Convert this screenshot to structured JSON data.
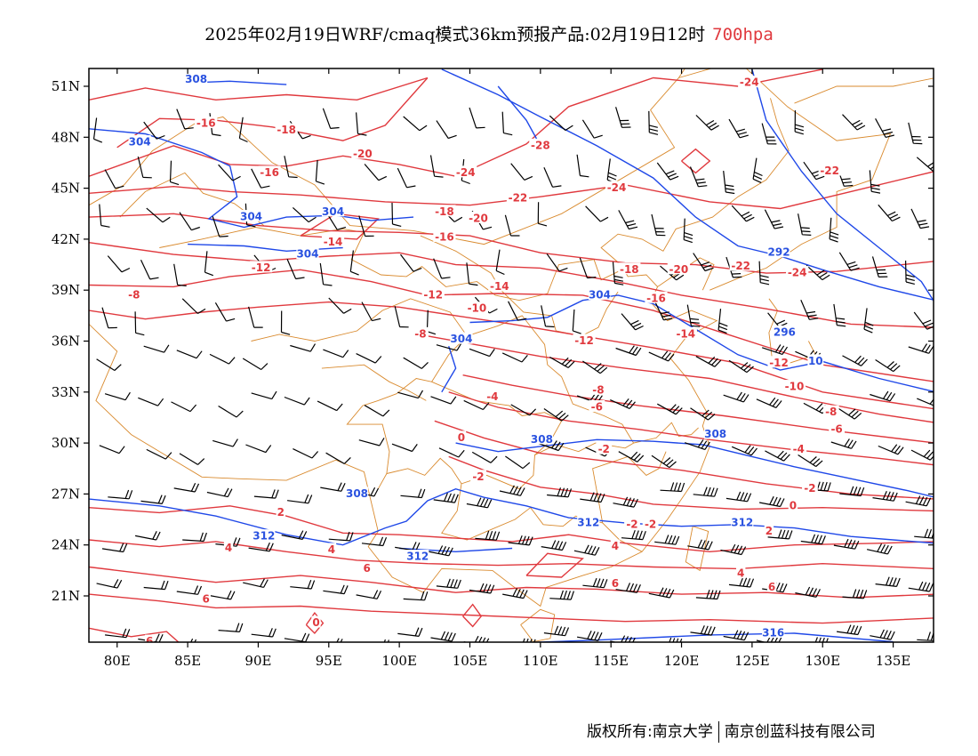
{
  "title": {
    "text": "2025年02月19日WRF/cmaq模式36km预报产品:02月19日12时",
    "level": "700hpa"
  },
  "footer": {
    "owner": "版权所有:南京大学",
    "company": "南京创蓝科技有限公司"
  },
  "colors": {
    "temperature": "#e0393e",
    "geopotential_height": "#1f48e8",
    "boundaries": "#d98a2e",
    "wind_barbs": "#000000"
  },
  "axes": {
    "lon_ticks": [
      "80E",
      "85E",
      "90E",
      "95E",
      "100E",
      "105E",
      "110E",
      "115E",
      "120E",
      "125E",
      "130E",
      "135E"
    ],
    "lat_ticks": [
      "51N",
      "48N",
      "45N",
      "42N",
      "39N",
      "36N",
      "33N",
      "30N",
      "27N",
      "24N",
      "21N"
    ],
    "lon_range": [
      78,
      138
    ],
    "lat_range": [
      17.5,
      52
    ]
  },
  "temperature_labels": [
    {
      "text": "-16",
      "lon": 86.3,
      "lat": 48.8
    },
    {
      "text": "-18",
      "lon": 92,
      "lat": 48.4
    },
    {
      "text": "-16",
      "lon": 90.8,
      "lat": 45.9
    },
    {
      "text": "-20",
      "lon": 97.4,
      "lat": 47
    },
    {
      "text": "-28",
      "lon": 110,
      "lat": 47.5
    },
    {
      "text": "-24",
      "lon": 104.7,
      "lat": 45.9
    },
    {
      "text": "-24",
      "lon": 115.4,
      "lat": 45
    },
    {
      "text": "-24",
      "lon": 124.8,
      "lat": 51.2
    },
    {
      "text": "-22",
      "lon": 130.5,
      "lat": 46
    },
    {
      "text": "-22",
      "lon": 108.4,
      "lat": 44.4
    },
    {
      "text": "-18",
      "lon": 103.2,
      "lat": 43.6
    },
    {
      "text": "-20",
      "lon": 105.6,
      "lat": 43.2
    },
    {
      "text": "-16",
      "lon": 103.2,
      "lat": 42.1
    },
    {
      "text": "-14",
      "lon": 95.3,
      "lat": 41.8
    },
    {
      "text": "-12",
      "lon": 90.2,
      "lat": 40.3
    },
    {
      "text": "-18",
      "lon": 116.3,
      "lat": 40.2
    },
    {
      "text": "-20",
      "lon": 119.8,
      "lat": 40.2
    },
    {
      "text": "-22",
      "lon": 124.2,
      "lat": 40.4
    },
    {
      "text": "-24",
      "lon": 128.2,
      "lat": 40
    },
    {
      "text": "-8",
      "lon": 81.2,
      "lat": 38.7
    },
    {
      "text": "-12",
      "lon": 102.4,
      "lat": 38.7
    },
    {
      "text": "-14",
      "lon": 107.1,
      "lat": 39.2
    },
    {
      "text": "-16",
      "lon": 118.2,
      "lat": 38.5
    },
    {
      "text": "-10",
      "lon": 105.5,
      "lat": 37.9
    },
    {
      "text": "-8",
      "lon": 101.5,
      "lat": 36.4
    },
    {
      "text": "-12",
      "lon": 113.1,
      "lat": 36
    },
    {
      "text": "-14",
      "lon": 120.3,
      "lat": 36.4
    },
    {
      "text": "-12",
      "lon": 126.9,
      "lat": 34.7
    },
    {
      "text": "-10",
      "lon": 128,
      "lat": 33.3
    },
    {
      "text": "-8",
      "lon": 114.1,
      "lat": 33.1
    },
    {
      "text": "-4",
      "lon": 106.6,
      "lat": 32.7
    },
    {
      "text": "-6",
      "lon": 114,
      "lat": 32.1
    },
    {
      "text": "-8",
      "lon": 130.6,
      "lat": 31.8
    },
    {
      "text": "-6",
      "lon": 131,
      "lat": 30.8
    },
    {
      "text": "0",
      "lon": 104.4,
      "lat": 30.3
    },
    {
      "text": "-2",
      "lon": 114.5,
      "lat": 29.6
    },
    {
      "text": "-4",
      "lon": 128.3,
      "lat": 29.6
    },
    {
      "text": "-2",
      "lon": 105.6,
      "lat": 28
    },
    {
      "text": "-2",
      "lon": 129.1,
      "lat": 27.3
    },
    {
      "text": "0",
      "lon": 127.9,
      "lat": 26.3
    },
    {
      "text": "2",
      "lon": 91.6,
      "lat": 25.9
    },
    {
      "text": "-2",
      "lon": 116.5,
      "lat": 25.2
    },
    {
      "text": "-2",
      "lon": 117.8,
      "lat": 25.2
    },
    {
      "text": "2",
      "lon": 126.2,
      "lat": 24.8
    },
    {
      "text": "4",
      "lon": 87.9,
      "lat": 23.8
    },
    {
      "text": "4",
      "lon": 95.2,
      "lat": 23.7
    },
    {
      "text": "4",
      "lon": 115.3,
      "lat": 23.9
    },
    {
      "text": "4",
      "lon": 124.2,
      "lat": 22.3
    },
    {
      "text": "6",
      "lon": 97.7,
      "lat": 22.6
    },
    {
      "text": "6",
      "lon": 115.3,
      "lat": 21.7
    },
    {
      "text": "6",
      "lon": 86.3,
      "lat": 20.8
    },
    {
      "text": "6",
      "lon": 126.4,
      "lat": 21.5
    },
    {
      "text": "6",
      "lon": 82.3,
      "lat": 18.3
    },
    {
      "text": "0",
      "lon": 94.1,
      "lat": 19.4
    }
  ],
  "height_labels": [
    {
      "text": "308",
      "lon": 85.6,
      "lat": 51.4
    },
    {
      "text": "304",
      "lon": 81.6,
      "lat": 47.7
    },
    {
      "text": "304",
      "lon": 89.5,
      "lat": 43.3
    },
    {
      "text": "304",
      "lon": 95.3,
      "lat": 43.6
    },
    {
      "text": "304",
      "lon": 93.5,
      "lat": 41.1
    },
    {
      "text": "304",
      "lon": 114.2,
      "lat": 38.7
    },
    {
      "text": "304",
      "lon": 104.4,
      "lat": 36.1
    },
    {
      "text": "292",
      "lon": 126.9,
      "lat": 41.2
    },
    {
      "text": "296",
      "lon": 127.3,
      "lat": 36.5
    },
    {
      "text": "10",
      "lon": 129.5,
      "lat": 34.8
    },
    {
      "text": "308",
      "lon": 110.1,
      "lat": 30.2
    },
    {
      "text": "308",
      "lon": 122.4,
      "lat": 30.5
    },
    {
      "text": "308",
      "lon": 97,
      "lat": 27
    },
    {
      "text": "312",
      "lon": 90.4,
      "lat": 24.5
    },
    {
      "text": "312",
      "lon": 113.4,
      "lat": 25.3
    },
    {
      "text": "312",
      "lon": 124.3,
      "lat": 25.3
    },
    {
      "text": "312",
      "lon": 101.3,
      "lat": 23.3
    },
    {
      "text": "316",
      "lon": 126.5,
      "lat": 18.8
    }
  ]
}
